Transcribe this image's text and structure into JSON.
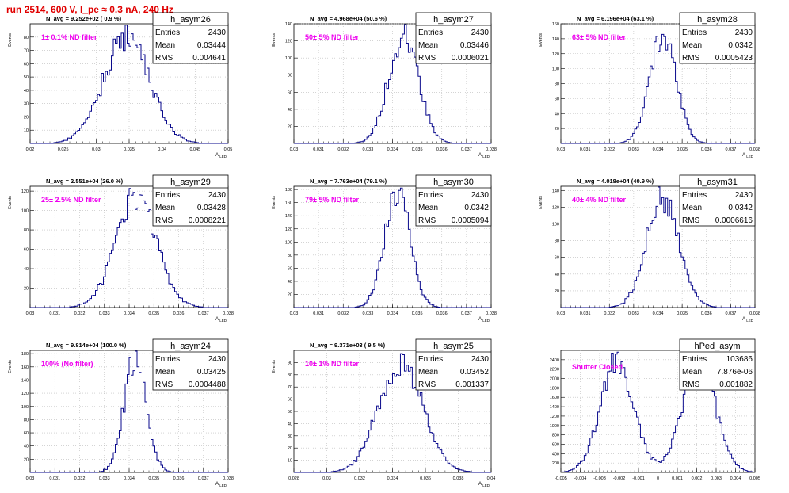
{
  "run_title": "run 2514,   600 V, I_pe ≈ 0.3 nA, 240 Hz",
  "colors": {
    "histogram_line": "#0a0a8c",
    "annotation": "#ee00ee",
    "title_red": "#e00000",
    "grid": "#bbbbbb"
  },
  "chart_data": [
    {
      "type": "histogram",
      "name": "h_asym26",
      "title": "N_avg = 9.252e+02 ( 0.9 %)",
      "annotation": "1± 0.1% ND filter",
      "xlabel": "A_LED",
      "ylabel": "Events",
      "xlim": [
        0.015,
        0.055
      ],
      "ylim": [
        0,
        90
      ],
      "x_ticks": [
        "0.02",
        "0.025",
        "0.03",
        "0.035",
        "0.04",
        "0.045",
        "0.05"
      ],
      "y_ticks": [
        "10",
        "20",
        "30",
        "40",
        "50",
        "60",
        "70",
        "80"
      ],
      "stats": {
        "Entries": "2430",
        "Mean": "0.03444",
        "RMS": "0.004641"
      },
      "peak": 80,
      "mean": 0.03444,
      "rms": 0.004641,
      "grid": true
    },
    {
      "type": "histogram",
      "name": "h_asym27",
      "title": "N_avg = 4.968e+04 (50.6 %)",
      "annotation": "50± 5% ND filter",
      "xlabel": "A_LED",
      "ylabel": "Events",
      "xlim": [
        0.03,
        0.038
      ],
      "ylim": [
        0,
        140
      ],
      "x_ticks": [
        "0.03",
        "0.031",
        "0.032",
        "0.033",
        "0.034",
        "0.035",
        "0.036",
        "0.037",
        "0.038"
      ],
      "y_ticks": [
        "20",
        "40",
        "60",
        "80",
        "100",
        "120",
        "140"
      ],
      "stats": {
        "Entries": "2430",
        "Mean": "0.03446",
        "RMS": "0.0006021"
      },
      "peak": 130,
      "mean": 0.03446,
      "rms": 0.0006021,
      "grid": true
    },
    {
      "type": "histogram",
      "name": "h_asym28",
      "title": "N_avg = 6.196e+04 (63.1 %)",
      "annotation": "63± 5% ND filter",
      "xlabel": "A_LED",
      "ylabel": "Events",
      "xlim": [
        0.03,
        0.038
      ],
      "ylim": [
        0,
        160
      ],
      "x_ticks": [
        "0.03",
        "0.031",
        "0.032",
        "0.033",
        "0.034",
        "0.035",
        "0.036",
        "0.037",
        "0.038"
      ],
      "y_ticks": [
        "20",
        "40",
        "60",
        "80",
        "100",
        "120",
        "140",
        "160"
      ],
      "stats": {
        "Entries": "2430",
        "Mean": "0.0342",
        "RMS": "0.0005423"
      },
      "peak": 148,
      "mean": 0.0342,
      "rms": 0.0005423,
      "grid": true
    },
    {
      "type": "histogram",
      "name": "h_asym29",
      "title": "N_avg = 2.551e+04 (26.0 %)",
      "annotation": "25± 2.5% ND filter",
      "xlabel": "A_LED",
      "ylabel": "Events",
      "xlim": [
        0.03,
        0.038
      ],
      "ylim": [
        0,
        125
      ],
      "x_ticks": [
        "0.03",
        "0.031",
        "0.032",
        "0.033",
        "0.034",
        "0.035",
        "0.036",
        "0.037",
        "0.038"
      ],
      "y_ticks": [
        "20",
        "40",
        "60",
        "80",
        "100",
        "120"
      ],
      "stats": {
        "Entries": "2430",
        "Mean": "0.03428",
        "RMS": "0.0008221"
      },
      "peak": 112,
      "mean": 0.03428,
      "rms": 0.0008221,
      "grid": true
    },
    {
      "type": "histogram",
      "name": "h_asym30",
      "title": "N_avg = 7.763e+04 (79.1 %)",
      "annotation": "79± 5% ND filter",
      "xlabel": "A_LED",
      "ylabel": "Events",
      "xlim": [
        0.03,
        0.038
      ],
      "ylim": [
        0,
        185
      ],
      "x_ticks": [
        "0.03",
        "0.031",
        "0.032",
        "0.033",
        "0.034",
        "0.035",
        "0.036",
        "0.037",
        "0.038"
      ],
      "y_ticks": [
        "20",
        "40",
        "60",
        "80",
        "100",
        "120",
        "140",
        "160",
        "180"
      ],
      "stats": {
        "Entries": "2430",
        "Mean": "0.0342",
        "RMS": "0.0005094"
      },
      "peak": 175,
      "mean": 0.0342,
      "rms": 0.0005094,
      "grid": true
    },
    {
      "type": "histogram",
      "name": "h_asym31",
      "title": "N_avg = 4.018e+04 (40.9 %)",
      "annotation": "40± 4% ND filter",
      "xlabel": "A_LED",
      "ylabel": "Events",
      "xlim": [
        0.03,
        0.038
      ],
      "ylim": [
        0,
        145
      ],
      "x_ticks": [
        "0.03",
        "0.031",
        "0.032",
        "0.033",
        "0.034",
        "0.035",
        "0.036",
        "0.037",
        "0.038"
      ],
      "y_ticks": [
        "20",
        "40",
        "60",
        "80",
        "100",
        "120",
        "140"
      ],
      "stats": {
        "Entries": "2430",
        "Mean": "0.0342",
        "RMS": "0.0006616"
      },
      "peak": 133,
      "mean": 0.0342,
      "rms": 0.0006616,
      "grid": true
    },
    {
      "type": "histogram",
      "name": "h_asym24",
      "title": "N_avg = 9.814e+04 (100.0 %)",
      "annotation": "100% (No filter)",
      "xlabel": "A_LED",
      "ylabel": "Events",
      "xlim": [
        0.03,
        0.038
      ],
      "ylim": [
        0,
        185
      ],
      "x_ticks": [
        "0.03",
        "0.031",
        "0.032",
        "0.033",
        "0.034",
        "0.035",
        "0.036",
        "0.037",
        "0.038"
      ],
      "y_ticks": [
        "20",
        "40",
        "60",
        "80",
        "100",
        "120",
        "140",
        "160",
        "180"
      ],
      "stats": {
        "Entries": "2430",
        "Mean": "0.03425",
        "RMS": "0.0004488"
      },
      "peak": 172,
      "mean": 0.03425,
      "rms": 0.0004488,
      "grid": true
    },
    {
      "type": "histogram",
      "name": "h_asym25",
      "title": "N_avg = 9.371e+03 ( 9.5 %)",
      "annotation": "10± 1% ND filter",
      "xlabel": "A_LED",
      "ylabel": "Events",
      "xlim": [
        0.028,
        0.04
      ],
      "ylim": [
        0,
        100
      ],
      "x_ticks": [
        "0.028",
        "0.03",
        "0.032",
        "0.034",
        "0.036",
        "0.038",
        "0.04"
      ],
      "y_ticks": [
        "10",
        "20",
        "30",
        "40",
        "50",
        "60",
        "70",
        "80",
        "90"
      ],
      "stats": {
        "Entries": "2430",
        "Mean": "0.03452",
        "RMS": "0.001337"
      },
      "peak": 88,
      "mean": 0.03452,
      "rms": 0.001337,
      "grid": true
    },
    {
      "type": "histogram",
      "name": "hPed_asym",
      "title": "",
      "annotation": "Shutter Closed",
      "xlabel": "",
      "ylabel": "",
      "xlim": [
        -0.005,
        0.005
      ],
      "ylim": [
        0,
        2600
      ],
      "x_ticks": [
        "-0.005",
        "-0.004",
        "-0.003",
        "-0.002",
        "-0.001",
        "0",
        "0.001",
        "0.002",
        "0.003",
        "0.004",
        "0.005"
      ],
      "y_ticks": [
        "200",
        "400",
        "600",
        "800",
        "1000",
        "1200",
        "1400",
        "1600",
        "1800",
        "2000",
        "2200",
        "2400"
      ],
      "stats": {
        "Entries": "103686",
        "Mean": "7.876e-06",
        "RMS": "0.001882"
      },
      "bimodal": {
        "peaks": [
          -0.0021,
          0.0021
        ],
        "sigma": 0.00085,
        "height": 2400
      },
      "grid": true
    }
  ]
}
